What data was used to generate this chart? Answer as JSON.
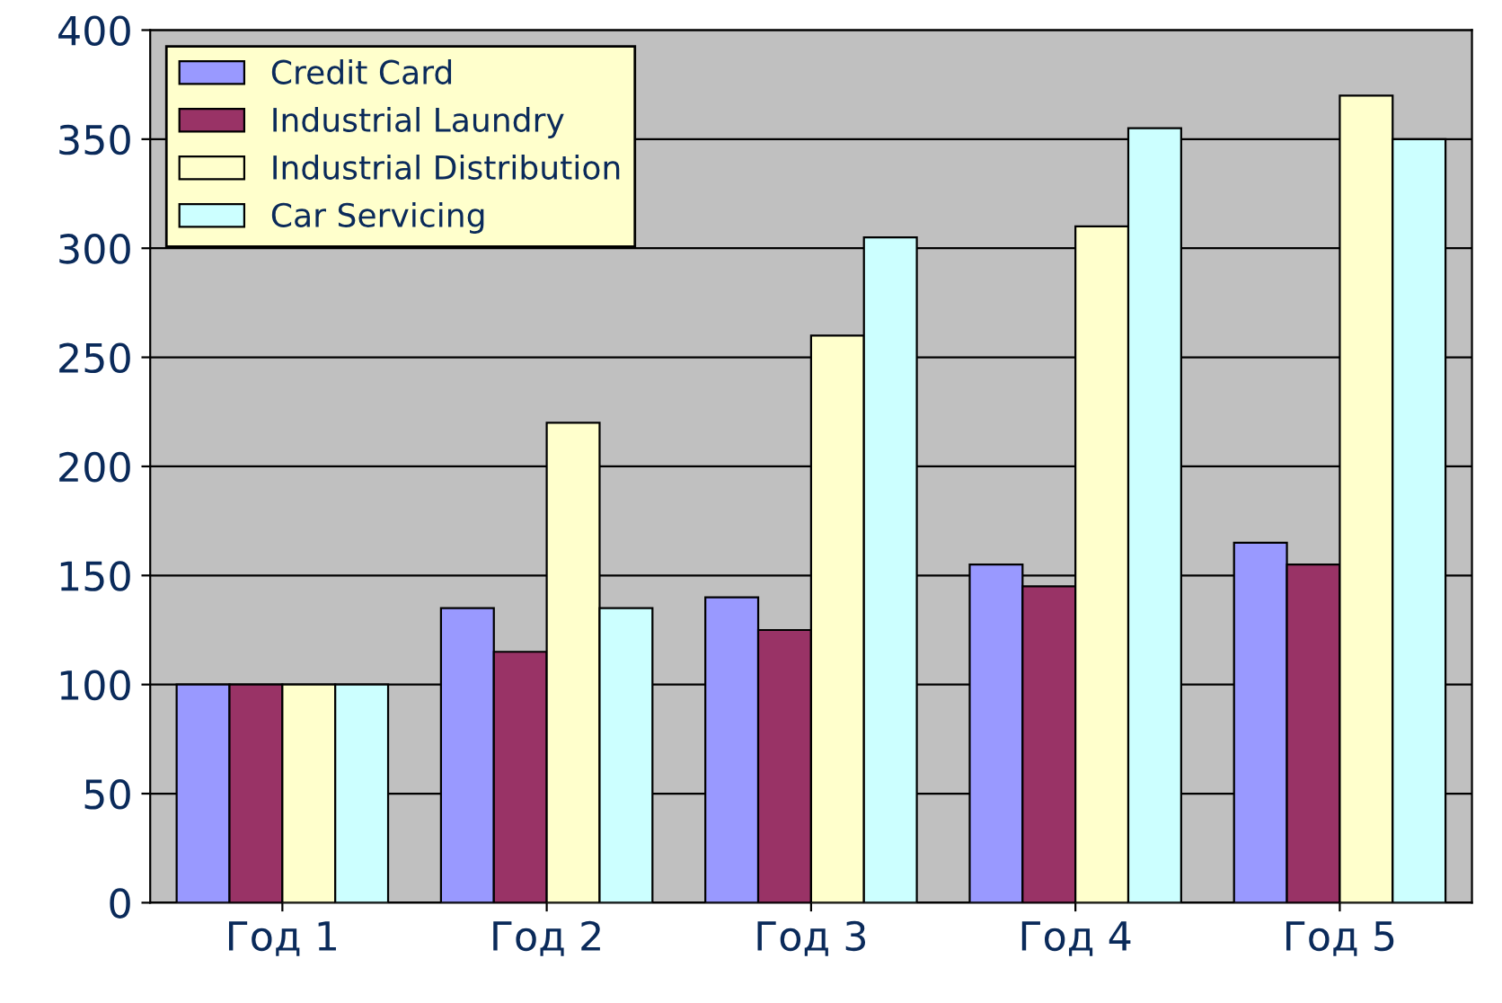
{
  "chart_data": {
    "type": "bar",
    "categories": [
      "Год 1",
      "Год 2",
      "Год 3",
      "Год 4",
      "Год 5"
    ],
    "series": [
      {
        "name": "Credit Card",
        "color": "#9999ff",
        "values": [
          100,
          135,
          140,
          155,
          165
        ]
      },
      {
        "name": "Industrial Laundry",
        "color": "#993366",
        "values": [
          100,
          115,
          125,
          145,
          155
        ]
      },
      {
        "name": "Industrial Distribution",
        "color": "#ffffcc",
        "values": [
          100,
          220,
          260,
          310,
          370
        ]
      },
      {
        "name": "Car Servicing",
        "color": "#ccffff",
        "values": [
          100,
          135,
          305,
          355,
          350
        ]
      }
    ],
    "ylim": [
      0,
      400
    ],
    "yticks": [
      0,
      50,
      100,
      150,
      200,
      250,
      300,
      350,
      400
    ],
    "grid": "y",
    "legend": "top left"
  }
}
